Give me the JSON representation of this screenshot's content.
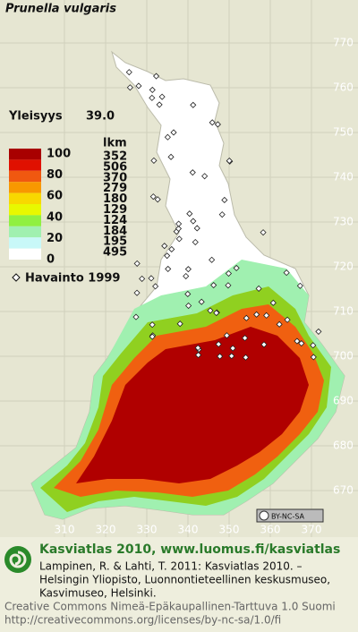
{
  "title": "Prunella vulgaris",
  "frequency": {
    "label": "Yleisyys",
    "value": "39.0"
  },
  "legend": {
    "header": "lkm",
    "scale_labels": [
      "100",
      "80",
      "60",
      "40",
      "20",
      "0"
    ],
    "counts": [
      "352",
      "506",
      "370",
      "279",
      "180",
      "129",
      "124",
      "184",
      "195",
      "495"
    ],
    "colors": [
      "#a80000",
      "#e01000",
      "#f05810",
      "#f89800",
      "#f8d800",
      "#e8f800",
      "#90f040",
      "#a0f0b0",
      "#c8f8f8",
      "#ffffff"
    ]
  },
  "observation": "Havainto 1999",
  "grid": {
    "y_labels": [
      "770",
      "760",
      "750",
      "740",
      "730",
      "720",
      "710",
      "700",
      "690",
      "680",
      "670"
    ],
    "x_labels": [
      "310",
      "320",
      "330",
      "340",
      "350",
      "360",
      "370"
    ]
  },
  "license_badge": "BY-NC-SA",
  "footer": {
    "heading": "Kasviatlas 2010, www.luomus.fi/kasviatlas",
    "citation_lines": [
      "Lampinen, R. & Lahti, T. 2011: Kasviatlas 2010. –",
      "Helsingin Yliopisto, Luonnontieteellinen keskusmuseo,",
      "Kasvimuseo, Helsinki."
    ],
    "license_lines": [
      "Creative Commons Nimeä-Epäkaupallinen-Tarttuva 1.0 Suomi",
      "http://creativecommons.org/licenses/by-nc-sa/1.0/fi"
    ]
  }
}
